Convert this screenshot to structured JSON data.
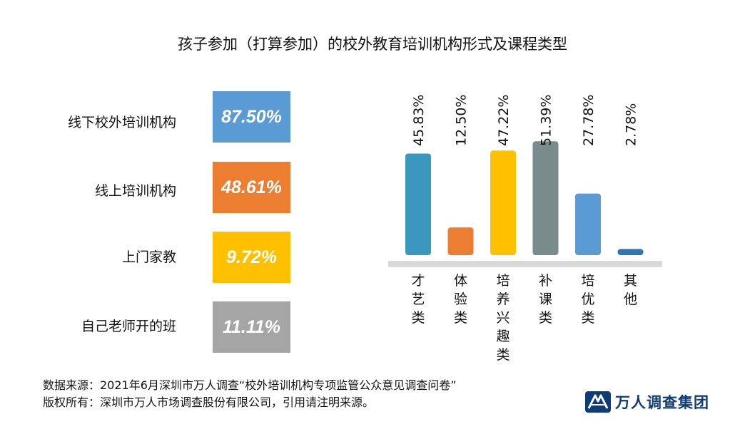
{
  "title": "孩子参加（打算参加）的校外教育培训机构形式及课程类型",
  "forms": [
    {
      "label": "线下校外培训机构",
      "value_label": "87.50%",
      "value": 87.5,
      "color": "#5b9bd5"
    },
    {
      "label": "线上培训机构",
      "value_label": "48.61%",
      "value": 48.61,
      "color": "#ed7d31"
    },
    {
      "label": "上门家教",
      "value_label": "9.72%",
      "value": 9.72,
      "color": "#ffc000"
    },
    {
      "label": "自己老师开的班",
      "value_label": "11.11%",
      "value": 11.11,
      "color": "#a5a5a5"
    }
  ],
  "chart_data": {
    "type": "bar",
    "categories": [
      "才艺类",
      "体验类",
      "培养兴趣类",
      "补课类",
      "培优类",
      "其他"
    ],
    "values": [
      45.83,
      12.5,
      47.22,
      51.39,
      27.78,
      2.78
    ],
    "value_labels": [
      "45.83%",
      "12.50%",
      "47.22%",
      "51.39%",
      "27.78%",
      "2.78%"
    ],
    "colors": [
      "#3a97be",
      "#ed7d31",
      "#ffc000",
      "#7a8b8d",
      "#5b9bd5",
      "#2e75b6"
    ],
    "title": "",
    "xlabel": "",
    "ylabel": "",
    "ylim": [
      0,
      55
    ],
    "grid": false
  },
  "source_line1": "数据来源：2021年6月深圳市万人调查“校外培训机构专项监管公众意见调查问卷”",
  "source_line2": "版权所有：深圳市万人市场调查股份有限公司，引用请注明来源。",
  "logo": {
    "text": "万人调查集团",
    "icon": "wanren-logo-icon"
  }
}
